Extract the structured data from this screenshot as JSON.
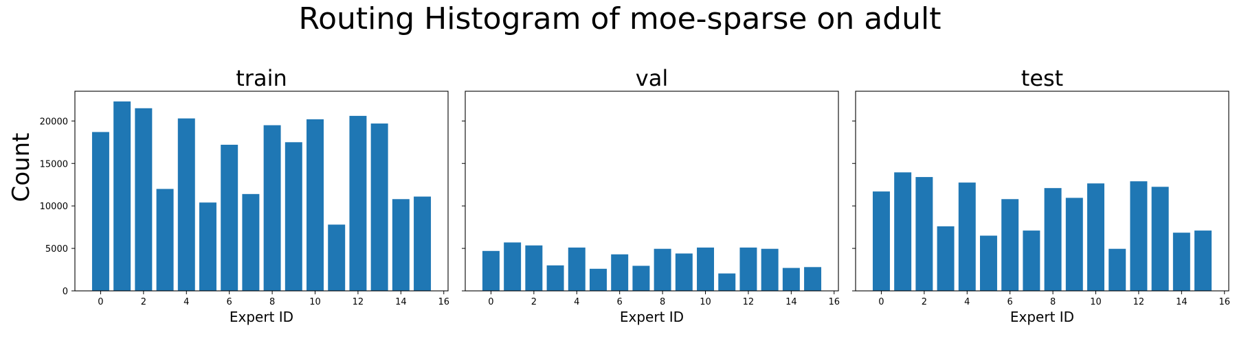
{
  "figure": {
    "suptitle": "Routing Histogram of moe-sparse on adult",
    "shared_ylabel": "Count"
  },
  "chart_data": [
    {
      "type": "bar",
      "title": "train",
      "xlabel": "Expert ID",
      "ylabel": "Count",
      "x": [
        0,
        1,
        2,
        3,
        4,
        5,
        6,
        7,
        8,
        9,
        10,
        11,
        12,
        13,
        14,
        15
      ],
      "values": [
        18700,
        22300,
        21500,
        12000,
        20300,
        10400,
        17200,
        11400,
        19500,
        17500,
        20200,
        7800,
        20600,
        19700,
        10800,
        11100
      ],
      "xlim": [
        -1.2,
        16.2
      ],
      "ylim": [
        0,
        23500
      ],
      "xticks": [
        0,
        2,
        4,
        6,
        8,
        10,
        12,
        14,
        16
      ],
      "yticks": [
        0,
        5000,
        10000,
        15000,
        20000
      ],
      "bar_color": "#1f77b4",
      "grid": false
    },
    {
      "type": "bar",
      "title": "val",
      "xlabel": "Expert ID",
      "ylabel": "",
      "x": [
        0,
        1,
        2,
        3,
        4,
        5,
        6,
        7,
        8,
        9,
        10,
        11,
        12,
        13,
        14,
        15
      ],
      "values": [
        4700,
        5700,
        5350,
        3000,
        5100,
        2600,
        4300,
        2950,
        4950,
        4400,
        5100,
        2050,
        5100,
        4950,
        2700,
        2800
      ],
      "xlim": [
        -1.2,
        16.2
      ],
      "ylim": [
        0,
        23500
      ],
      "xticks": [
        0,
        2,
        4,
        6,
        8,
        10,
        12,
        14,
        16
      ],
      "yticks": [
        0,
        5000,
        10000,
        15000,
        20000
      ],
      "bar_color": "#1f77b4",
      "grid": false
    },
    {
      "type": "bar",
      "title": "test",
      "xlabel": "Expert ID",
      "ylabel": "",
      "x": [
        0,
        1,
        2,
        3,
        4,
        5,
        6,
        7,
        8,
        9,
        10,
        11,
        12,
        13,
        14,
        15
      ],
      "values": [
        11700,
        13950,
        13400,
        7600,
        12750,
        6500,
        10800,
        7100,
        12100,
        10950,
        12650,
        4950,
        12900,
        12250,
        6850,
        7100
      ],
      "xlim": [
        -1.2,
        16.2
      ],
      "ylim": [
        0,
        23500
      ],
      "xticks": [
        0,
        2,
        4,
        6,
        8,
        10,
        12,
        14,
        16
      ],
      "yticks": [
        0,
        5000,
        10000,
        15000,
        20000
      ],
      "bar_color": "#1f77b4",
      "grid": false
    }
  ]
}
